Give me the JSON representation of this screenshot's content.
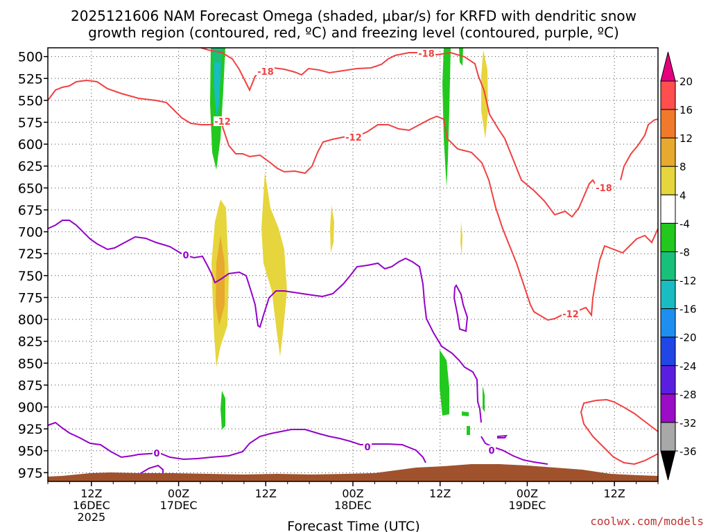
{
  "chart_data": {
    "type": "heatmap",
    "title_line1": "2025121606 NAM Forecast Omega (shaded, μbar/s) for KRFD with dendritic snow",
    "title_line2": "growth region (contoured, red, ºC) and freezing level (contoured, purple, ºC)",
    "xlabel": "Forecast Time (UTC)",
    "watermark": "coolwx.com/models",
    "y_ticks": [
      500,
      525,
      550,
      575,
      600,
      625,
      650,
      675,
      700,
      725,
      750,
      775,
      800,
      825,
      850,
      875,
      900,
      925,
      950,
      975
    ],
    "ylim": [
      490,
      985
    ],
    "x_range_hours": [
      0,
      84
    ],
    "x_ticks": [
      {
        "hour": 6,
        "l1": "12Z",
        "l2": "16DEC",
        "l3": "2025"
      },
      {
        "hour": 18,
        "l1": "00Z",
        "l2": "17DEC",
        "l3": ""
      },
      {
        "hour": 30,
        "l1": "12Z",
        "l2": "",
        "l3": ""
      },
      {
        "hour": 42,
        "l1": "00Z",
        "l2": "18DEC",
        "l3": ""
      },
      {
        "hour": 54,
        "l1": "12Z",
        "l2": "",
        "l3": ""
      },
      {
        "hour": 66,
        "l1": "00Z",
        "l2": "19DEC",
        "l3": ""
      },
      {
        "hour": 78,
        "l1": "12Z",
        "l2": "",
        "l3": ""
      }
    ],
    "colorbar": {
      "labels": [
        "20",
        "16",
        "12",
        "8",
        "4",
        "-4",
        "-8",
        "-12",
        "-16",
        "-20",
        "-24",
        "-28",
        "-32",
        "-36"
      ],
      "colors": [
        "#ff4e4e",
        "#f07a2a",
        "#e7a92e",
        "#e6d53c",
        "#ffffff",
        "#22c81e",
        "#18c07a",
        "#19bcc0",
        "#1e8ff0",
        "#2046e6",
        "#5a1ee0",
        "#9a0cc6",
        "#a8a8a8"
      ],
      "top_arrow": "#e6007e",
      "bottom_arrow": "#000000"
    },
    "contour_labels": {
      "red_m18": "-18",
      "red_m12": "-12",
      "purple_0": "0"
    }
  }
}
